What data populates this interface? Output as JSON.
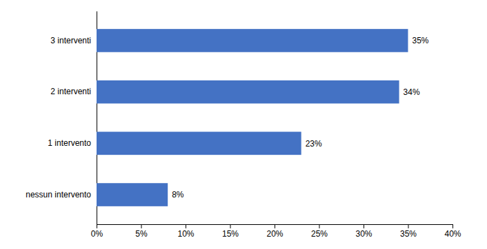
{
  "chart_data": {
    "type": "bar",
    "orientation": "horizontal",
    "categories": [
      "nessun intervento",
      "1 intervento",
      "2 interventi",
      "3 interventi"
    ],
    "values": [
      8,
      23,
      34,
      35
    ],
    "value_labels": [
      "8%",
      "23%",
      "34%",
      "35%"
    ],
    "data_labels": true,
    "color": "#4472C4",
    "xlim": [
      0,
      40
    ],
    "xticks": [
      {
        "value": 0,
        "label": "0%"
      },
      {
        "value": 5,
        "label": "5%"
      },
      {
        "value": 10,
        "label": "10%"
      },
      {
        "value": 15,
        "label": "15%"
      },
      {
        "value": 20,
        "label": "20%"
      },
      {
        "value": 25,
        "label": "25%"
      },
      {
        "value": 30,
        "label": "30%"
      },
      {
        "value": 35,
        "label": "35%"
      },
      {
        "value": 40,
        "label": "40%"
      }
    ],
    "grid": false
  }
}
